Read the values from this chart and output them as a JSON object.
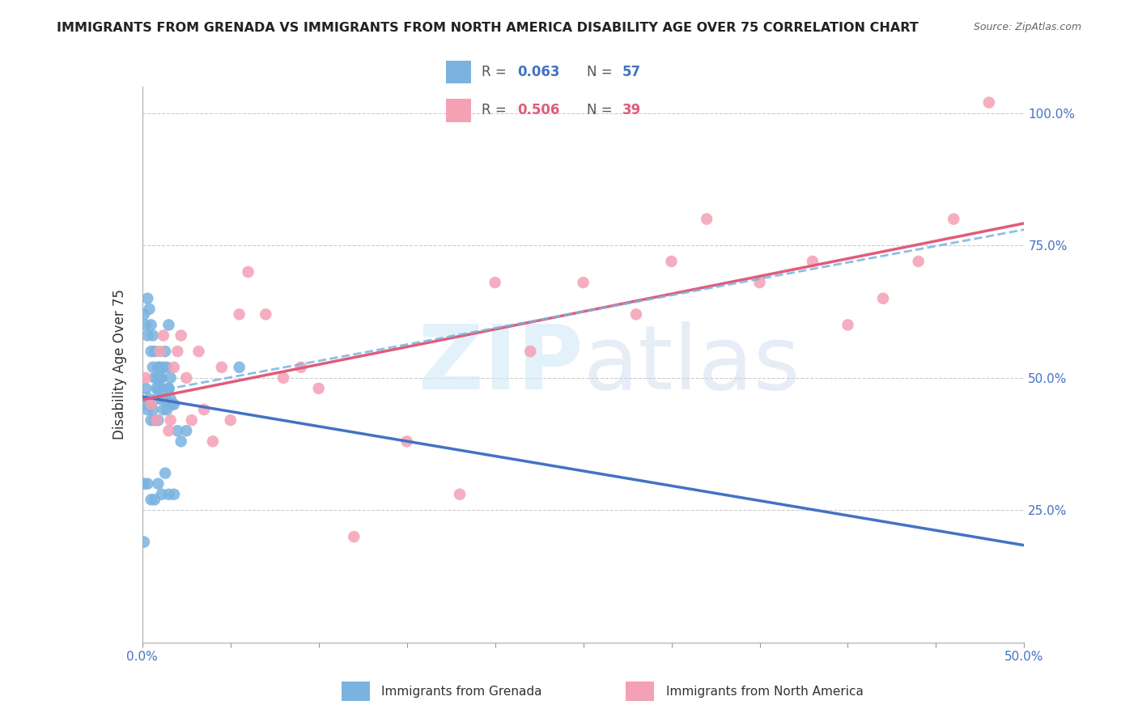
{
  "title": "IMMIGRANTS FROM GRENADA VS IMMIGRANTS FROM NORTH AMERICA DISABILITY AGE OVER 75 CORRELATION CHART",
  "source": "Source: ZipAtlas.com",
  "ylabel": "Disability Age Over 75",
  "legend_r1": "0.063",
  "legend_n1": "57",
  "legend_r2": "0.506",
  "legend_n2": "39",
  "color_blue": "#7ab3e0",
  "color_pink": "#f4a0b5",
  "line_blue": "#4472c4",
  "line_pink": "#e05c7a",
  "line_dashed": "#7ab3e0",
  "blue_x": [
    0.001,
    0.002,
    0.003,
    0.003,
    0.004,
    0.005,
    0.005,
    0.006,
    0.006,
    0.007,
    0.007,
    0.008,
    0.008,
    0.009,
    0.009,
    0.01,
    0.01,
    0.011,
    0.011,
    0.012,
    0.013,
    0.014,
    0.015,
    0.015,
    0.016,
    0.017,
    0.018,
    0.02,
    0.022,
    0.025,
    0.001,
    0.002,
    0.003,
    0.004,
    0.005,
    0.006,
    0.007,
    0.008,
    0.009,
    0.01,
    0.011,
    0.012,
    0.013,
    0.014,
    0.015,
    0.016,
    0.055,
    0.001,
    0.003,
    0.005,
    0.007,
    0.009,
    0.011,
    0.013,
    0.015,
    0.018,
    0.001
  ],
  "blue_y": [
    0.62,
    0.6,
    0.58,
    0.65,
    0.63,
    0.6,
    0.55,
    0.58,
    0.52,
    0.55,
    0.5,
    0.5,
    0.48,
    0.52,
    0.48,
    0.5,
    0.52,
    0.48,
    0.5,
    0.52,
    0.55,
    0.52,
    0.6,
    0.48,
    0.5,
    0.45,
    0.45,
    0.4,
    0.38,
    0.4,
    0.45,
    0.48,
    0.44,
    0.46,
    0.42,
    0.44,
    0.42,
    0.46,
    0.42,
    0.5,
    0.46,
    0.44,
    0.46,
    0.44,
    0.48,
    0.46,
    0.52,
    0.3,
    0.3,
    0.27,
    0.27,
    0.3,
    0.28,
    0.32,
    0.28,
    0.28,
    0.19
  ],
  "pink_x": [
    0.002,
    0.005,
    0.008,
    0.01,
    0.012,
    0.015,
    0.016,
    0.018,
    0.02,
    0.022,
    0.025,
    0.028,
    0.032,
    0.035,
    0.04,
    0.045,
    0.05,
    0.055,
    0.06,
    0.07,
    0.08,
    0.09,
    0.1,
    0.12,
    0.15,
    0.18,
    0.2,
    0.22,
    0.25,
    0.28,
    0.3,
    0.32,
    0.35,
    0.38,
    0.4,
    0.42,
    0.44,
    0.46,
    0.48
  ],
  "pink_y": [
    0.5,
    0.45,
    0.42,
    0.55,
    0.58,
    0.4,
    0.42,
    0.52,
    0.55,
    0.58,
    0.5,
    0.42,
    0.55,
    0.44,
    0.38,
    0.52,
    0.42,
    0.62,
    0.7,
    0.62,
    0.5,
    0.52,
    0.48,
    0.2,
    0.38,
    0.28,
    0.68,
    0.55,
    0.68,
    0.62,
    0.72,
    0.8,
    0.68,
    0.72,
    0.6,
    0.65,
    0.72,
    0.8,
    1.02
  ]
}
